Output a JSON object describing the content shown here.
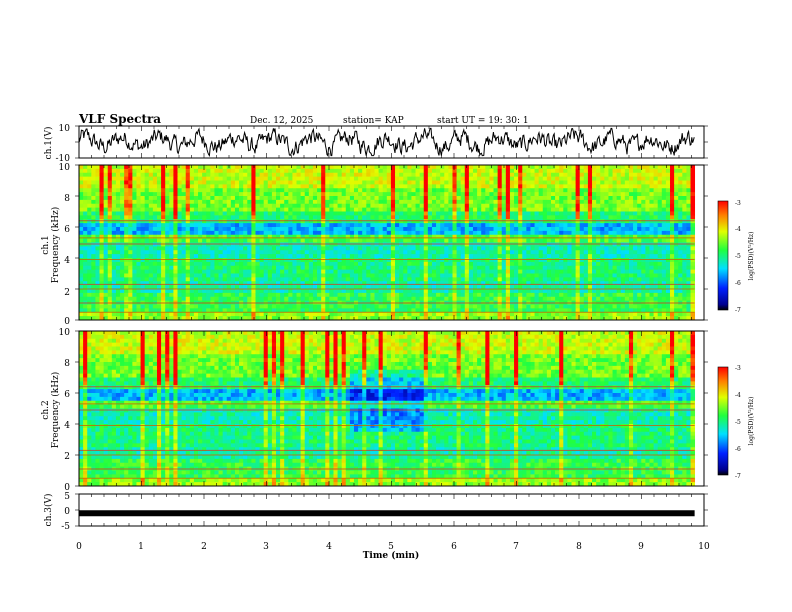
{
  "header": {
    "title": "VLF Spectra",
    "date": "Dec. 12, 2025",
    "station": "station= KAP",
    "start_ut": "start UT =  19: 30: 1"
  },
  "chart_data": [
    {
      "id": "ch1_waveform",
      "type": "line",
      "ylabel": "ch.1(V)",
      "ylim": [
        -10,
        10
      ],
      "yticks": [
        "10",
        "-10"
      ],
      "xlim": [
        0,
        10
      ],
      "x_end_data": 9.85,
      "series": [
        {
          "name": "ch.1",
          "description_values": "noise-like waveform oscillating roughly between -8 and 8 V"
        }
      ]
    },
    {
      "id": "ch1_spectrogram",
      "type": "heatmap",
      "ylabel_line1": "ch.1",
      "ylabel_line2": "Frequency (kHz)",
      "ylim": [
        0,
        10
      ],
      "yticks": [
        "0",
        "2",
        "4",
        "6",
        "8",
        "10"
      ],
      "xlim": [
        0,
        10
      ],
      "x_end_data": 9.85,
      "colorbar": {
        "label": "log(PSD)(V²/Hz)",
        "range": [
          -7,
          -3
        ],
        "ticks": [
          "-3",
          "-4",
          "-5",
          "-6",
          "-7"
        ]
      }
    },
    {
      "id": "ch2_spectrogram",
      "type": "heatmap",
      "ylabel_line1": "ch.2",
      "ylabel_line2": "Frequency (kHz)",
      "ylim": [
        0,
        10
      ],
      "yticks": [
        "0",
        "2",
        "4",
        "6",
        "8",
        "10"
      ],
      "xlim": [
        0,
        10
      ],
      "x_end_data": 9.85,
      "colorbar": {
        "label": "log(PSD)(V²/Hz)",
        "range": [
          -7,
          -3
        ],
        "ticks": [
          "-3",
          "-4",
          "-5",
          "-6",
          "-7"
        ]
      }
    },
    {
      "id": "ch3_waveform",
      "type": "line",
      "ylabel": "ch.3(V)",
      "ylim": [
        -5,
        5
      ],
      "yticks": [
        "5",
        "0",
        "-5"
      ],
      "xlim": [
        0,
        10
      ],
      "x_end_data": 9.85,
      "series": [
        {
          "name": "ch.3",
          "description_values": "flat thick band at about -1 V"
        }
      ],
      "level": -1
    }
  ],
  "xaxis": {
    "label": "Time (min)",
    "ticks": [
      "0",
      "1",
      "2",
      "3",
      "4",
      "5",
      "6",
      "7",
      "8",
      "9",
      "10"
    ]
  },
  "colors": {
    "line": "#000000",
    "frame": "#000000"
  }
}
